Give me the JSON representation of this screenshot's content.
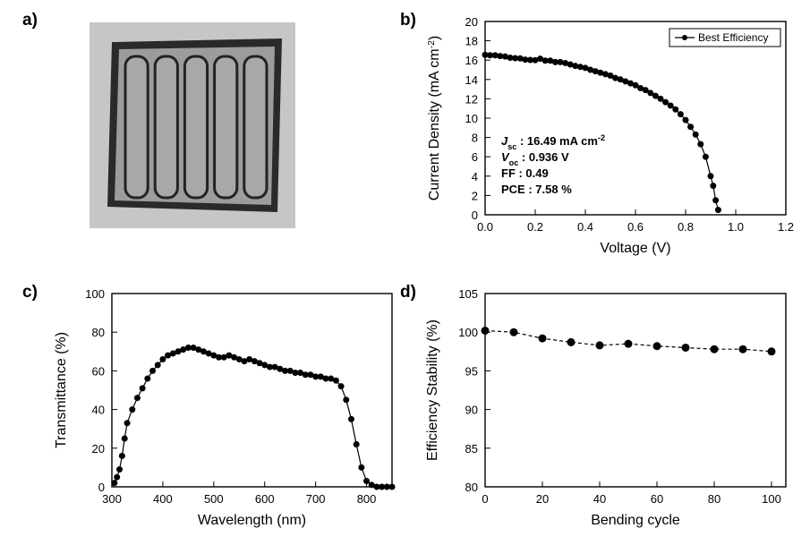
{
  "labels": {
    "a": "a)",
    "b": "b)",
    "c": "c)",
    "d": "d)"
  },
  "panelA": {
    "bg": "#c6c6c6",
    "border": "#2a2a2a",
    "cell_fill": "#a8a8a8",
    "cell_border": "#222222",
    "strips": 5
  },
  "panelB": {
    "type": "scatter-line",
    "xlabel": "Voltage (V)",
    "ylabel": "Current Density (mA cm",
    "ylabel_suffix": ")",
    "ylabel_sup": "-2",
    "xlim": [
      0.0,
      1.2
    ],
    "ylim": [
      0,
      20
    ],
    "xticks": [
      0.0,
      0.2,
      0.4,
      0.6,
      0.8,
      1.0,
      1.2
    ],
    "yticks": [
      0,
      2,
      4,
      6,
      8,
      10,
      12,
      14,
      16,
      18,
      20
    ],
    "legend": [
      "Best Efficiency"
    ],
    "series_color": "#000000",
    "marker_fill": "#000000",
    "marker_size": 3.2,
    "line_width": 1.2,
    "bg": "#ffffff",
    "axis_fontsize": 16,
    "tick_fontsize": 13,
    "annot_fontsize": 13,
    "legend_fontsize": 12,
    "annotations": {
      "line1_pre": "J",
      "line1_sub": "sc",
      "line1_post": " : 16.49 mA cm",
      "line1_sup": "-2",
      "line2_pre": "V",
      "line2_sub": "oc",
      "line2_post": " : 0.936 V",
      "line3": "FF : 0.49",
      "line4": "PCE : 7.58 %"
    },
    "data": [
      [
        0.0,
        16.55
      ],
      [
        0.02,
        16.5
      ],
      [
        0.04,
        16.5
      ],
      [
        0.06,
        16.42
      ],
      [
        0.08,
        16.38
      ],
      [
        0.1,
        16.25
      ],
      [
        0.12,
        16.2
      ],
      [
        0.14,
        16.18
      ],
      [
        0.16,
        16.05
      ],
      [
        0.18,
        16.02
      ],
      [
        0.2,
        16.0
      ],
      [
        0.22,
        16.15
      ],
      [
        0.24,
        15.95
      ],
      [
        0.26,
        15.95
      ],
      [
        0.28,
        15.8
      ],
      [
        0.3,
        15.8
      ],
      [
        0.32,
        15.7
      ],
      [
        0.34,
        15.55
      ],
      [
        0.36,
        15.4
      ],
      [
        0.38,
        15.3
      ],
      [
        0.4,
        15.2
      ],
      [
        0.42,
        15.0
      ],
      [
        0.44,
        14.85
      ],
      [
        0.46,
        14.7
      ],
      [
        0.48,
        14.55
      ],
      [
        0.5,
        14.4
      ],
      [
        0.52,
        14.15
      ],
      [
        0.54,
        14.0
      ],
      [
        0.56,
        13.8
      ],
      [
        0.58,
        13.6
      ],
      [
        0.6,
        13.4
      ],
      [
        0.62,
        13.1
      ],
      [
        0.64,
        12.9
      ],
      [
        0.66,
        12.6
      ],
      [
        0.68,
        12.3
      ],
      [
        0.7,
        12.0
      ],
      [
        0.72,
        11.65
      ],
      [
        0.74,
        11.3
      ],
      [
        0.76,
        10.9
      ],
      [
        0.78,
        10.4
      ],
      [
        0.8,
        9.8
      ],
      [
        0.82,
        9.1
      ],
      [
        0.84,
        8.3
      ],
      [
        0.86,
        7.3
      ],
      [
        0.88,
        6.0
      ],
      [
        0.9,
        4.0
      ],
      [
        0.91,
        3.0
      ],
      [
        0.92,
        1.5
      ],
      [
        0.93,
        0.5
      ]
    ]
  },
  "panelC": {
    "type": "scatter-line",
    "xlabel": "Wavelength (nm)",
    "ylabel": "Transmittance (%)",
    "xlim": [
      300,
      850
    ],
    "ylim": [
      0,
      100
    ],
    "xticks": [
      300,
      400,
      500,
      600,
      700,
      800
    ],
    "yticks": [
      0,
      20,
      40,
      60,
      80,
      100
    ],
    "series_color": "#000000",
    "marker_fill": "#000000",
    "marker_size": 3.2,
    "line_width": 1.2,
    "bg": "#ffffff",
    "axis_fontsize": 16,
    "tick_fontsize": 13,
    "data": [
      [
        305,
        2
      ],
      [
        310,
        5
      ],
      [
        315,
        9
      ],
      [
        320,
        16
      ],
      [
        325,
        25
      ],
      [
        330,
        33
      ],
      [
        340,
        40
      ],
      [
        350,
        46
      ],
      [
        360,
        51
      ],
      [
        370,
        56
      ],
      [
        380,
        60
      ],
      [
        390,
        63
      ],
      [
        400,
        66
      ],
      [
        410,
        68
      ],
      [
        420,
        69
      ],
      [
        430,
        70
      ],
      [
        440,
        71
      ],
      [
        450,
        72
      ],
      [
        460,
        72
      ],
      [
        470,
        71
      ],
      [
        480,
        70
      ],
      [
        490,
        69
      ],
      [
        500,
        68
      ],
      [
        510,
        67
      ],
      [
        520,
        67
      ],
      [
        530,
        68
      ],
      [
        540,
        67
      ],
      [
        550,
        66
      ],
      [
        560,
        65
      ],
      [
        570,
        66
      ],
      [
        580,
        65
      ],
      [
        590,
        64
      ],
      [
        600,
        63
      ],
      [
        610,
        62
      ],
      [
        620,
        62
      ],
      [
        630,
        61
      ],
      [
        640,
        60
      ],
      [
        650,
        60
      ],
      [
        660,
        59
      ],
      [
        670,
        59
      ],
      [
        680,
        58
      ],
      [
        690,
        58
      ],
      [
        700,
        57
      ],
      [
        710,
        57
      ],
      [
        720,
        56
      ],
      [
        730,
        56
      ],
      [
        740,
        55
      ],
      [
        750,
        52
      ],
      [
        760,
        45
      ],
      [
        770,
        35
      ],
      [
        780,
        22
      ],
      [
        790,
        10
      ],
      [
        800,
        3
      ],
      [
        810,
        1
      ],
      [
        820,
        0
      ],
      [
        830,
        0
      ],
      [
        840,
        0
      ],
      [
        850,
        0
      ]
    ]
  },
  "panelD": {
    "type": "scatter-line",
    "xlabel": "Bending cycle",
    "ylabel": "Efficiency Stability (%)",
    "xlim": [
      0,
      105
    ],
    "ylim": [
      80,
      105
    ],
    "xticks": [
      0,
      20,
      40,
      60,
      80,
      100
    ],
    "yticks": [
      80,
      85,
      90,
      95,
      100,
      105
    ],
    "series_color": "#000000",
    "marker_fill": "#000000",
    "marker_size": 4.2,
    "line_width": 1.2,
    "line_dash": "4,3",
    "bg": "#ffffff",
    "axis_fontsize": 16,
    "tick_fontsize": 13,
    "data": [
      [
        0,
        100.2
      ],
      [
        10,
        100.0
      ],
      [
        20,
        99.2
      ],
      [
        30,
        98.7
      ],
      [
        40,
        98.3
      ],
      [
        50,
        98.5
      ],
      [
        60,
        98.2
      ],
      [
        70,
        98.0
      ],
      [
        80,
        97.8
      ],
      [
        90,
        97.8
      ],
      [
        100,
        97.5
      ]
    ]
  }
}
